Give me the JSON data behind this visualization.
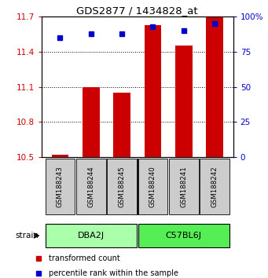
{
  "title": "GDS2877 / 1434828_at",
  "samples": [
    "GSM188243",
    "GSM188244",
    "GSM188245",
    "GSM188240",
    "GSM188241",
    "GSM188242"
  ],
  "groups": [
    {
      "name": "DBA2J",
      "indices": [
        0,
        1,
        2
      ],
      "color": "#aaffaa"
    },
    {
      "name": "C57BL6J",
      "indices": [
        3,
        4,
        5
      ],
      "color": "#55ee55"
    }
  ],
  "bar_values": [
    10.52,
    11.1,
    11.05,
    11.63,
    11.45,
    11.72
  ],
  "percentile_values": [
    85,
    88,
    88,
    93,
    90,
    95
  ],
  "bar_color": "#cc0000",
  "dot_color": "#0000cc",
  "ylim_left": [
    10.5,
    11.7
  ],
  "ylim_right": [
    0,
    100
  ],
  "yticks_left": [
    10.5,
    10.8,
    11.1,
    11.4,
    11.7
  ],
  "yticks_right": [
    0,
    25,
    50,
    75,
    100
  ],
  "yticklabels_right": [
    "0",
    "25",
    "50",
    "75",
    "100%"
  ],
  "bar_width": 0.55,
  "strain_label": "strain",
  "legend_items": [
    {
      "color": "#cc0000",
      "label": "transformed count"
    },
    {
      "color": "#0000cc",
      "label": "percentile rank within the sample"
    }
  ],
  "sample_box_color": "#cccccc",
  "dba2j_color": "#aaffaa",
  "c57bl6j_color": "#55ee55"
}
